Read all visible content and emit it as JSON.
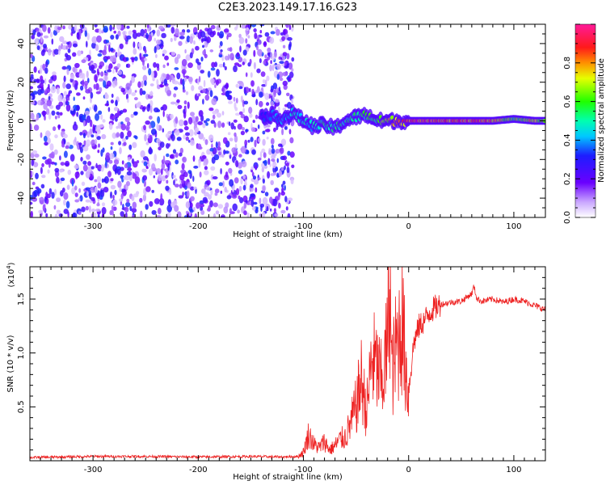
{
  "title": "C2E3.2023.149.17.16.G23",
  "chart_data": [
    {
      "type": "heatmap",
      "xlabel": "Height of straight line (km)",
      "ylabel": "Frequency (Hz)",
      "xlim": [
        -360,
        130
      ],
      "ylim": [
        -50,
        50
      ],
      "xticks": [
        -300,
        -200,
        -100,
        0,
        100
      ],
      "yticks": [
        -40,
        -20,
        0,
        20,
        40
      ],
      "colorbar": {
        "label": "Normalized spectral amplitude",
        "range": [
          0,
          1
        ],
        "ticks": [
          "0.0",
          "0.2",
          "0.4",
          "0.6",
          "0.8"
        ],
        "tick_values": [
          0,
          0.2,
          0.4,
          0.6,
          0.8
        ],
        "colormap": "white-purple-blue-cyan-green-yellow-red-magenta"
      },
      "noise_region": {
        "x": [
          -360,
          -110
        ],
        "amplitude": [
          0.05,
          0.35
        ]
      },
      "signal_line": {
        "x": [
          -140,
          -130,
          -120,
          -110,
          -100,
          -90,
          -80,
          -70,
          -60,
          -50,
          -40,
          -30,
          -20,
          -10,
          0,
          20,
          40,
          60,
          80,
          100,
          120,
          130
        ],
        "freq": [
          2,
          3,
          1,
          4,
          0,
          -3,
          -2,
          -4,
          0,
          2,
          3,
          0,
          0,
          0,
          0,
          0,
          0,
          0,
          0,
          1,
          0,
          0
        ],
        "amplitude": [
          0.3,
          0.35,
          0.4,
          0.45,
          0.45,
          0.45,
          0.5,
          0.5,
          0.5,
          0.5,
          0.55,
          0.6,
          0.7,
          0.75,
          0.85,
          0.85,
          0.85,
          0.85,
          0.8,
          0.55,
          0.75,
          0.6
        ]
      },
      "colors": {
        "noise": "#6a00ff",
        "line_core": "#ff2a2a"
      }
    },
    {
      "type": "line",
      "xlabel": "Height of straight line (km)",
      "ylabel": "SNR (10 * v/v)",
      "multiplier_label": "(x10",
      "multiplier_exp": "4",
      "xlim": [
        -360,
        130
      ],
      "ylim": [
        0,
        1.8
      ],
      "xticks": [
        -300,
        -200,
        -100,
        0,
        100
      ],
      "yticks": [
        0.5,
        1.0,
        1.5
      ],
      "ytick_labels": [
        "0.5",
        "1.0",
        "1.5"
      ],
      "color": "#ee2222",
      "series": [
        {
          "x": [
            -360,
            -300,
            -250,
            -200,
            -150,
            -120,
            -105,
            -100,
            -95,
            -90,
            -85,
            -80,
            -75,
            -70,
            -65,
            -60,
            -55,
            -50,
            -45,
            -40,
            -35,
            -30,
            -25,
            -20,
            -18,
            -16,
            -14,
            -12,
            -10,
            -8,
            -6,
            -4,
            -2,
            0,
            5,
            10,
            15,
            20,
            25,
            30,
            40,
            50,
            60,
            62,
            65,
            70,
            80,
            90,
            100,
            110,
            120,
            130
          ],
          "y": [
            0.03,
            0.04,
            0.04,
            0.035,
            0.04,
            0.035,
            0.04,
            0.08,
            0.25,
            0.15,
            0.12,
            0.18,
            0.1,
            0.14,
            0.2,
            0.22,
            0.35,
            0.5,
            0.75,
            0.45,
            0.95,
            0.85,
            0.7,
            1.1,
            1.8,
            0.8,
            0.9,
            1.05,
            1.1,
            1.25,
            1.3,
            1.0,
            0.8,
            0.65,
            1.1,
            1.25,
            1.3,
            1.38,
            1.42,
            1.45,
            1.47,
            1.48,
            1.55,
            1.62,
            1.5,
            1.48,
            1.5,
            1.47,
            1.5,
            1.48,
            1.44,
            1.4
          ]
        }
      ]
    }
  ]
}
